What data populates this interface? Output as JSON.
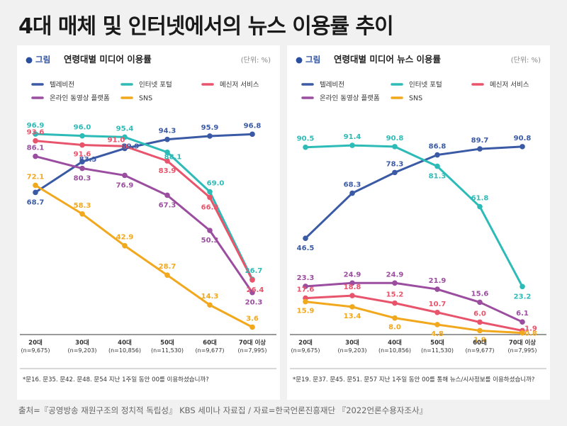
{
  "page": {
    "title": "4대 매체 및 인터넷에서의 뉴스 이용률 추이",
    "source": "출처=『공영방송 재원구조의 정치적 독립성』 KBS 세미나 자료집 / 자료=한국언론진흥재단 『2022언론수용자조사』"
  },
  "colors": {
    "tv": "#3b5aa5",
    "portal": "#2dbbb7",
    "messenger": "#e8546b",
    "video": "#9b4d9f",
    "sns": "#f2a81d",
    "badge": "#2a4fa0"
  },
  "chart_data": [
    {
      "type": "line",
      "badge": "● 그림",
      "title": "연령대별 미디어 이용률",
      "unit": "(단위: %)",
      "categories": [
        "20대",
        "30대",
        "40대",
        "50대",
        "60대",
        "70대 이상"
      ],
      "category_samples": [
        "(n=9,675)",
        "(n=9,203)",
        "(n=10,856)",
        "(n=11,530)",
        "(n=9,677)",
        "(n=7,995)"
      ],
      "series": [
        {
          "name": "텔레비전",
          "color": "#3b5aa5",
          "values": [
            68.7,
            83.5,
            89.9,
            94.3,
            95.9,
            96.8
          ]
        },
        {
          "name": "인터넷 포털",
          "color": "#2dbbb7",
          "values": [
            96.9,
            96.0,
            95.4,
            88.1,
            69.0,
            26.7
          ]
        },
        {
          "name": "메신저 서비스",
          "color": "#e8546b",
          "values": [
            93.6,
            91.6,
            91.0,
            83.9,
            66.3,
            26.4
          ]
        },
        {
          "name": "온라인 동영상 플랫폼",
          "color": "#9b4d9f",
          "values": [
            86.1,
            80.3,
            76.9,
            67.3,
            50.3,
            20.3
          ]
        },
        {
          "name": "SNS",
          "color": "#f2a81d",
          "values": [
            72.1,
            58.3,
            42.9,
            28.7,
            14.3,
            3.6
          ]
        }
      ],
      "footnote": "*문16. 문35. 문42. 문48. 문54   지난 1주일 동안 00를 이용하셨습니까?"
    },
    {
      "type": "line",
      "badge": "● 그림",
      "title": "연령대별 미디어 뉴스 이용률",
      "unit": "(단위: %)",
      "categories": [
        "20대",
        "30대",
        "40대",
        "50대",
        "60대",
        "70대 이상"
      ],
      "category_samples": [
        "(n=9,675)",
        "(n=9,203)",
        "(n=10,856)",
        "(n=11,530)",
        "(n=9,677)",
        "(n=7,995)"
      ],
      "series": [
        {
          "name": "텔레비전",
          "color": "#3b5aa5",
          "values": [
            46.5,
            68.3,
            78.3,
            86.8,
            89.7,
            90.8
          ]
        },
        {
          "name": "인터넷 포털",
          "color": "#2dbbb7",
          "values": [
            90.5,
            91.4,
            90.8,
            81.3,
            61.8,
            23.2
          ]
        },
        {
          "name": "메신저 서비스",
          "color": "#e8546b",
          "values": [
            17.6,
            18.8,
            15.2,
            10.7,
            6.0,
            1.9
          ]
        },
        {
          "name": "온라인 동영상 플랫폼",
          "color": "#9b4d9f",
          "values": [
            23.3,
            24.9,
            24.9,
            21.9,
            15.6,
            6.1
          ]
        },
        {
          "name": "SNS",
          "color": "#f2a81d",
          "values": [
            15.9,
            13.4,
            8.0,
            4.8,
            1.9,
            0.8
          ]
        }
      ],
      "footnote": "*문19. 문37. 문45. 문51. 문57   지난 1주일 동안 00를 통해 뉴스/시사정보를 이용하셨습니까?"
    }
  ]
}
